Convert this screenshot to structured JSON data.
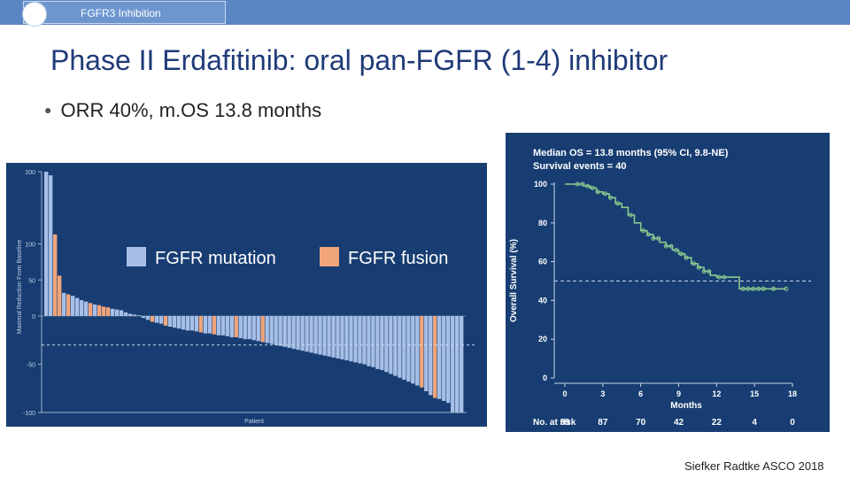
{
  "header": {
    "tab_label": "FGFR3 Inhibition"
  },
  "slide": {
    "title": "Phase II Erdafitinib: oral pan-FGFR (1-4) inhibitor",
    "bullet": "ORR 40%,  m.OS 13.8 months",
    "footer": "Siefker Radtke ASCO 2018"
  },
  "colors": {
    "panel_bg": "#173d72",
    "mutation": "#a7bfe6",
    "fusion": "#f0a57a",
    "km_line": "#8bc98f",
    "dashed": "#c9d6ea"
  },
  "chart_data": [
    {
      "type": "bar",
      "title": "",
      "ylabel": "Maximal Reduction From Baseline",
      "xlabel": "Patient",
      "ylim": [
        -100,
        200
      ],
      "yticks": [
        200,
        100,
        50,
        0,
        -50,
        -100
      ],
      "reference_line": -30,
      "legend": [
        {
          "name": "FGFR mutation",
          "color_key": "mutation"
        },
        {
          "name": "FGFR fusion",
          "color_key": "fusion"
        }
      ],
      "bars": [
        {
          "v": 200,
          "t": "m"
        },
        {
          "v": 195,
          "t": "m"
        },
        {
          "v": 113,
          "t": "f"
        },
        {
          "v": 56,
          "t": "f"
        },
        {
          "v": 32,
          "t": "m"
        },
        {
          "v": 30,
          "t": "f"
        },
        {
          "v": 28,
          "t": "m"
        },
        {
          "v": 25,
          "t": "m"
        },
        {
          "v": 22,
          "t": "m"
        },
        {
          "v": 20,
          "t": "m"
        },
        {
          "v": 18,
          "t": "f"
        },
        {
          "v": 16,
          "t": "m"
        },
        {
          "v": 15,
          "t": "f"
        },
        {
          "v": 13,
          "t": "f"
        },
        {
          "v": 12,
          "t": "f"
        },
        {
          "v": 10,
          "t": "m"
        },
        {
          "v": 9,
          "t": "m"
        },
        {
          "v": 8,
          "t": "m"
        },
        {
          "v": 5,
          "t": "m"
        },
        {
          "v": 3,
          "t": "m"
        },
        {
          "v": 2,
          "t": "m"
        },
        {
          "v": 1,
          "t": "m"
        },
        {
          "v": -2,
          "t": "m"
        },
        {
          "v": -4,
          "t": "m"
        },
        {
          "v": -6,
          "t": "f"
        },
        {
          "v": -7,
          "t": "m"
        },
        {
          "v": -8,
          "t": "m"
        },
        {
          "v": -10,
          "t": "f"
        },
        {
          "v": -11,
          "t": "m"
        },
        {
          "v": -12,
          "t": "m"
        },
        {
          "v": -13,
          "t": "m"
        },
        {
          "v": -14,
          "t": "m"
        },
        {
          "v": -15,
          "t": "m"
        },
        {
          "v": -15,
          "t": "m"
        },
        {
          "v": -16,
          "t": "m"
        },
        {
          "v": -17,
          "t": "f"
        },
        {
          "v": -18,
          "t": "m"
        },
        {
          "v": -18,
          "t": "m"
        },
        {
          "v": -19,
          "t": "f"
        },
        {
          "v": -20,
          "t": "m"
        },
        {
          "v": -20,
          "t": "m"
        },
        {
          "v": -21,
          "t": "m"
        },
        {
          "v": -22,
          "t": "m"
        },
        {
          "v": -22,
          "t": "f"
        },
        {
          "v": -23,
          "t": "m"
        },
        {
          "v": -24,
          "t": "m"
        },
        {
          "v": -24,
          "t": "m"
        },
        {
          "v": -25,
          "t": "m"
        },
        {
          "v": -26,
          "t": "m"
        },
        {
          "v": -27,
          "t": "f"
        },
        {
          "v": -28,
          "t": "m"
        },
        {
          "v": -29,
          "t": "m"
        },
        {
          "v": -30,
          "t": "m"
        },
        {
          "v": -31,
          "t": "m"
        },
        {
          "v": -32,
          "t": "m"
        },
        {
          "v": -33,
          "t": "m"
        },
        {
          "v": -34,
          "t": "m"
        },
        {
          "v": -35,
          "t": "m"
        },
        {
          "v": -36,
          "t": "m"
        },
        {
          "v": -37,
          "t": "m"
        },
        {
          "v": -38,
          "t": "m"
        },
        {
          "v": -39,
          "t": "m"
        },
        {
          "v": -40,
          "t": "m"
        },
        {
          "v": -41,
          "t": "m"
        },
        {
          "v": -42,
          "t": "m"
        },
        {
          "v": -43,
          "t": "m"
        },
        {
          "v": -44,
          "t": "m"
        },
        {
          "v": -45,
          "t": "m"
        },
        {
          "v": -46,
          "t": "m"
        },
        {
          "v": -47,
          "t": "m"
        },
        {
          "v": -48,
          "t": "m"
        },
        {
          "v": -49,
          "t": "m"
        },
        {
          "v": -50,
          "t": "m"
        },
        {
          "v": -52,
          "t": "m"
        },
        {
          "v": -53,
          "t": "m"
        },
        {
          "v": -55,
          "t": "m"
        },
        {
          "v": -56,
          "t": "m"
        },
        {
          "v": -58,
          "t": "m"
        },
        {
          "v": -60,
          "t": "m"
        },
        {
          "v": -62,
          "t": "m"
        },
        {
          "v": -64,
          "t": "m"
        },
        {
          "v": -66,
          "t": "m"
        },
        {
          "v": -68,
          "t": "m"
        },
        {
          "v": -70,
          "t": "m"
        },
        {
          "v": -72,
          "t": "m"
        },
        {
          "v": -74,
          "t": "f"
        },
        {
          "v": -78,
          "t": "m"
        },
        {
          "v": -82,
          "t": "m"
        },
        {
          "v": -85,
          "t": "f"
        },
        {
          "v": -86,
          "t": "m"
        },
        {
          "v": -88,
          "t": "m"
        },
        {
          "v": -90,
          "t": "m"
        },
        {
          "v": -100,
          "t": "m"
        },
        {
          "v": -100,
          "t": "m"
        },
        {
          "v": -100,
          "t": "m"
        }
      ]
    },
    {
      "type": "line",
      "title_lines": [
        "Median OS = 13.8 months (95% CI, 9.8-NE)",
        "Survival events = 40"
      ],
      "xlabel": "Months",
      "ylabel": "Overall Survival (%)",
      "xlim": [
        0,
        18
      ],
      "ylim": [
        0,
        100
      ],
      "xticks": [
        0,
        3,
        6,
        9,
        12,
        15,
        18
      ],
      "yticks": [
        100,
        80,
        60,
        40,
        20,
        0
      ],
      "median_line": 50,
      "step_points": [
        [
          0,
          100
        ],
        [
          1.0,
          100
        ],
        [
          1.5,
          99
        ],
        [
          2.0,
          98
        ],
        [
          2.5,
          96
        ],
        [
          3.0,
          95
        ],
        [
          3.5,
          93
        ],
        [
          4.0,
          90
        ],
        [
          4.5,
          88
        ],
        [
          5.0,
          84
        ],
        [
          5.5,
          80
        ],
        [
          6.0,
          76
        ],
        [
          6.5,
          74
        ],
        [
          7.0,
          72
        ],
        [
          7.5,
          70
        ],
        [
          8.0,
          68
        ],
        [
          8.5,
          66
        ],
        [
          9.0,
          64
        ],
        [
          9.5,
          62
        ],
        [
          10.0,
          59
        ],
        [
          10.5,
          57
        ],
        [
          11.0,
          55
        ],
        [
          11.5,
          53
        ],
        [
          12.0,
          52
        ],
        [
          12.5,
          52
        ],
        [
          13.0,
          52
        ],
        [
          13.8,
          46
        ],
        [
          14.0,
          46
        ],
        [
          15.0,
          46
        ],
        [
          16.0,
          46
        ],
        [
          17.5,
          46
        ]
      ],
      "censor_times": [
        1.0,
        1.4,
        1.8,
        2.2,
        2.6,
        3.2,
        3.6,
        4.2,
        5.2,
        6.2,
        6.6,
        7.0,
        7.4,
        8.0,
        8.4,
        8.8,
        9.2,
        9.6,
        10.2,
        10.6,
        11.0,
        11.4,
        12.2,
        12.6,
        14.1,
        14.5,
        14.9,
        15.3,
        15.7,
        16.5,
        17.5
      ],
      "at_risk_label": "No. at risk",
      "at_risk": [
        99,
        87,
        70,
        42,
        22,
        4,
        0
      ]
    }
  ]
}
